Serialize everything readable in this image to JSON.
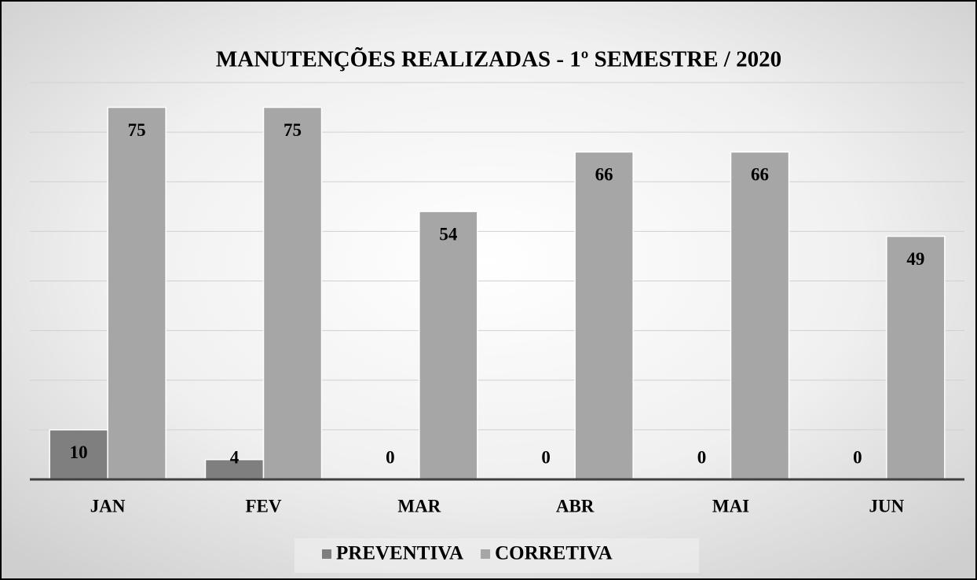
{
  "chart_data": {
    "type": "bar",
    "title": "MANUTENÇÕES REALIZADAS - 1º SEMESTRE / 2020",
    "categories": [
      "JAN",
      "FEV",
      "MAR",
      "ABR",
      "MAI",
      "JUN"
    ],
    "series": [
      {
        "name": "PREVENTIVA",
        "color": "#7f7f7f",
        "values": [
          10,
          4,
          0,
          0,
          0,
          0
        ]
      },
      {
        "name": "CORRETIVA",
        "color": "#a6a6a6",
        "values": [
          75,
          75,
          54,
          66,
          66,
          49
        ]
      }
    ],
    "ylim": [
      0,
      80
    ],
    "yticks": [
      0,
      10,
      20,
      30,
      40,
      50,
      60,
      70,
      80
    ],
    "grid": true,
    "legend": "bottom"
  }
}
